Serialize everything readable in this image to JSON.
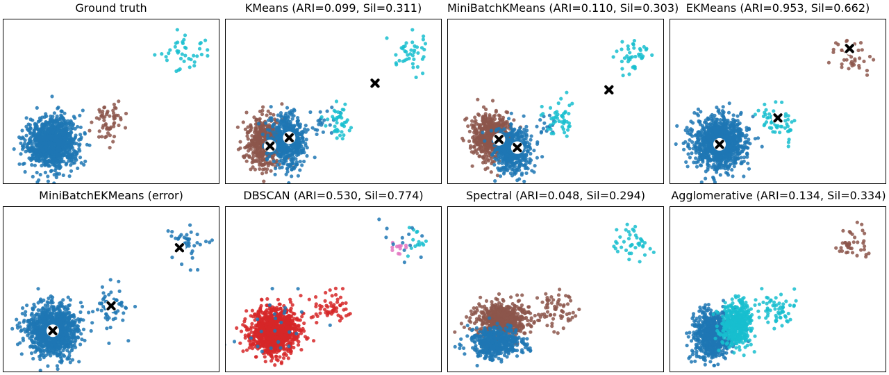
{
  "chart_data": [
    {
      "type": "scatter",
      "title": "Ground truth",
      "xlim": [
        -3,
        10
      ],
      "ylim": [
        -2.5,
        7.5
      ],
      "clusters": [
        {
          "color": "#1f77b4",
          "center": [
            0,
            0
          ],
          "spread": [
            0.75,
            0.75
          ],
          "count": 1100
        },
        {
          "color": "#8c564b",
          "center": [
            3.5,
            1.3
          ],
          "spread": [
            0.55,
            0.6
          ],
          "count": 60
        },
        {
          "color": "#17becf",
          "center": [
            8,
            5.3
          ],
          "spread": [
            0.6,
            0.6
          ],
          "count": 40
        }
      ],
      "centroids": []
    },
    {
      "type": "scatter",
      "title": "KMeans (ARI=0.099, Sil=0.311)",
      "xlim": [
        -3,
        10
      ],
      "ylim": [
        -2.5,
        7.5
      ],
      "clusters": [
        {
          "color": "#8c564b",
          "center": [
            -0.6,
            0
          ],
          "spread": [
            0.55,
            0.75
          ],
          "count": 550
        },
        {
          "color": "#1f77b4",
          "center": [
            0.8,
            0.1
          ],
          "spread": [
            0.55,
            0.75
          ],
          "count": 550
        },
        {
          "color": "#1f77b4",
          "center": [
            3.0,
            1.3
          ],
          "spread": [
            0.35,
            0.5
          ],
          "count": 20
        },
        {
          "color": "#17becf",
          "center": [
            3.9,
            1.3
          ],
          "spread": [
            0.4,
            0.55
          ],
          "count": 40
        },
        {
          "color": "#17becf",
          "center": [
            8,
            5.3
          ],
          "spread": [
            0.6,
            0.6
          ],
          "count": 40
        }
      ],
      "centroids": [
        [
          -0.3,
          -0.2
        ],
        [
          0.85,
          0.3
        ],
        [
          6.0,
          3.6
        ]
      ]
    },
    {
      "type": "scatter",
      "title": "MiniBatchKMeans (ARI=0.110, Sil=0.303)",
      "xlim": [
        -3,
        10
      ],
      "ylim": [
        -2.5,
        7.5
      ],
      "clusters": [
        {
          "color": "#8c564b",
          "center": [
            -0.4,
            0.4
          ],
          "spread": [
            0.6,
            0.7
          ],
          "count": 560
        },
        {
          "color": "#1f77b4",
          "center": [
            0.9,
            -0.4
          ],
          "spread": [
            0.55,
            0.7
          ],
          "count": 540
        },
        {
          "color": "#1f77b4",
          "center": [
            3.0,
            0.9
          ],
          "spread": [
            0.35,
            0.4
          ],
          "count": 15
        },
        {
          "color": "#17becf",
          "center": [
            3.7,
            1.4
          ],
          "spread": [
            0.45,
            0.55
          ],
          "count": 45
        },
        {
          "color": "#17becf",
          "center": [
            8,
            5.3
          ],
          "spread": [
            0.6,
            0.6
          ],
          "count": 40
        }
      ],
      "centroids": [
        [
          0.1,
          0.2
        ],
        [
          1.2,
          -0.3
        ],
        [
          6.7,
          3.2
        ]
      ]
    },
    {
      "type": "scatter",
      "title": "EKMeans (ARI=0.953, Sil=0.662)",
      "xlim": [
        -3,
        10
      ],
      "ylim": [
        -2.5,
        7.5
      ],
      "clusters": [
        {
          "color": "#1f77b4",
          "center": [
            0,
            0
          ],
          "spread": [
            0.75,
            0.75
          ],
          "count": 1100
        },
        {
          "color": "#17becf",
          "center": [
            3.5,
            1.3
          ],
          "spread": [
            0.55,
            0.6
          ],
          "count": 60
        },
        {
          "color": "#8c564b",
          "center": [
            8,
            5.3
          ],
          "spread": [
            0.6,
            0.6
          ],
          "count": 40
        }
      ],
      "centroids": [
        [
          0.0,
          -0.1
        ],
        [
          3.5,
          1.5
        ],
        [
          7.8,
          5.7
        ]
      ]
    },
    {
      "type": "scatter",
      "title": "MiniBatchEKMeans (error)",
      "xlim": [
        -3,
        10
      ],
      "ylim": [
        -2.5,
        7.5
      ],
      "clusters": [
        {
          "color": "#1f77b4",
          "center": [
            0,
            0
          ],
          "spread": [
            0.75,
            0.75
          ],
          "count": 1100
        },
        {
          "color": "#1f77b4",
          "center": [
            3.5,
            1.3
          ],
          "spread": [
            0.55,
            0.6
          ],
          "count": 60
        },
        {
          "color": "#1f77b4",
          "center": [
            8,
            5.3
          ],
          "spread": [
            0.6,
            0.6
          ],
          "count": 40
        }
      ],
      "centroids": [
        [
          0.0,
          0.0
        ],
        [
          3.5,
          1.5
        ],
        [
          7.6,
          5.0
        ]
      ]
    },
    {
      "type": "scatter",
      "title": "DBSCAN (ARI=0.530, Sil=0.774)",
      "xlim": [
        -3,
        10
      ],
      "ylim": [
        -2.5,
        7.5
      ],
      "clusters": [
        {
          "color": "#d62728",
          "center": [
            0,
            0
          ],
          "spread": [
            0.7,
            0.7
          ],
          "count": 1060
        },
        {
          "color": "#1f77b4",
          "center": [
            0,
            0
          ],
          "spread": [
            1.3,
            1.3
          ],
          "count": 25
        },
        {
          "color": "#d62728",
          "center": [
            3.5,
            1.3
          ],
          "spread": [
            0.55,
            0.6
          ],
          "count": 55
        },
        {
          "color": "#e377c2",
          "center": [
            7.5,
            5.1
          ],
          "spread": [
            0.35,
            0.25
          ],
          "count": 12
        },
        {
          "color": "#17becf",
          "center": [
            8.4,
            5.3
          ],
          "spread": [
            0.4,
            0.4
          ],
          "count": 14
        },
        {
          "color": "#1f77b4",
          "center": [
            7.8,
            5.5
          ],
          "spread": [
            0.8,
            0.8
          ],
          "count": 14
        }
      ],
      "centroids": []
    },
    {
      "type": "scatter",
      "title": "Spectral (ARI=0.048, Sil=0.294)",
      "xlim": [
        -3,
        10
      ],
      "ylim": [
        -2.5,
        7.5
      ],
      "clusters": [
        {
          "color": "#8c564b",
          "center": [
            0.3,
            0.6
          ],
          "spread": [
            0.8,
            0.55
          ],
          "count": 600
        },
        {
          "color": "#1f77b4",
          "center": [
            -0.1,
            -0.7
          ],
          "spread": [
            0.75,
            0.45
          ],
          "count": 500
        },
        {
          "color": "#8c564b",
          "center": [
            3.5,
            1.3
          ],
          "spread": [
            0.55,
            0.6
          ],
          "count": 60
        },
        {
          "color": "#17becf",
          "center": [
            8,
            5.3
          ],
          "spread": [
            0.6,
            0.6
          ],
          "count": 40
        }
      ],
      "centroids": []
    },
    {
      "type": "scatter",
      "title": "Agglomerative (ARI=0.134, Sil=0.334)",
      "xlim": [
        -3,
        10
      ],
      "ylim": [
        -2.5,
        7.5
      ],
      "clusters": [
        {
          "color": "#1f77b4",
          "center": [
            -0.4,
            -0.2
          ],
          "spread": [
            0.6,
            0.75
          ],
          "count": 650
        },
        {
          "color": "#17becf",
          "center": [
            1.0,
            0.4
          ],
          "spread": [
            0.45,
            0.65
          ],
          "count": 450
        },
        {
          "color": "#17becf",
          "center": [
            3.5,
            1.3
          ],
          "spread": [
            0.55,
            0.6
          ],
          "count": 60
        },
        {
          "color": "#8c564b",
          "center": [
            8,
            5.3
          ],
          "spread": [
            0.6,
            0.6
          ],
          "count": 40
        }
      ],
      "centroids": []
    }
  ]
}
